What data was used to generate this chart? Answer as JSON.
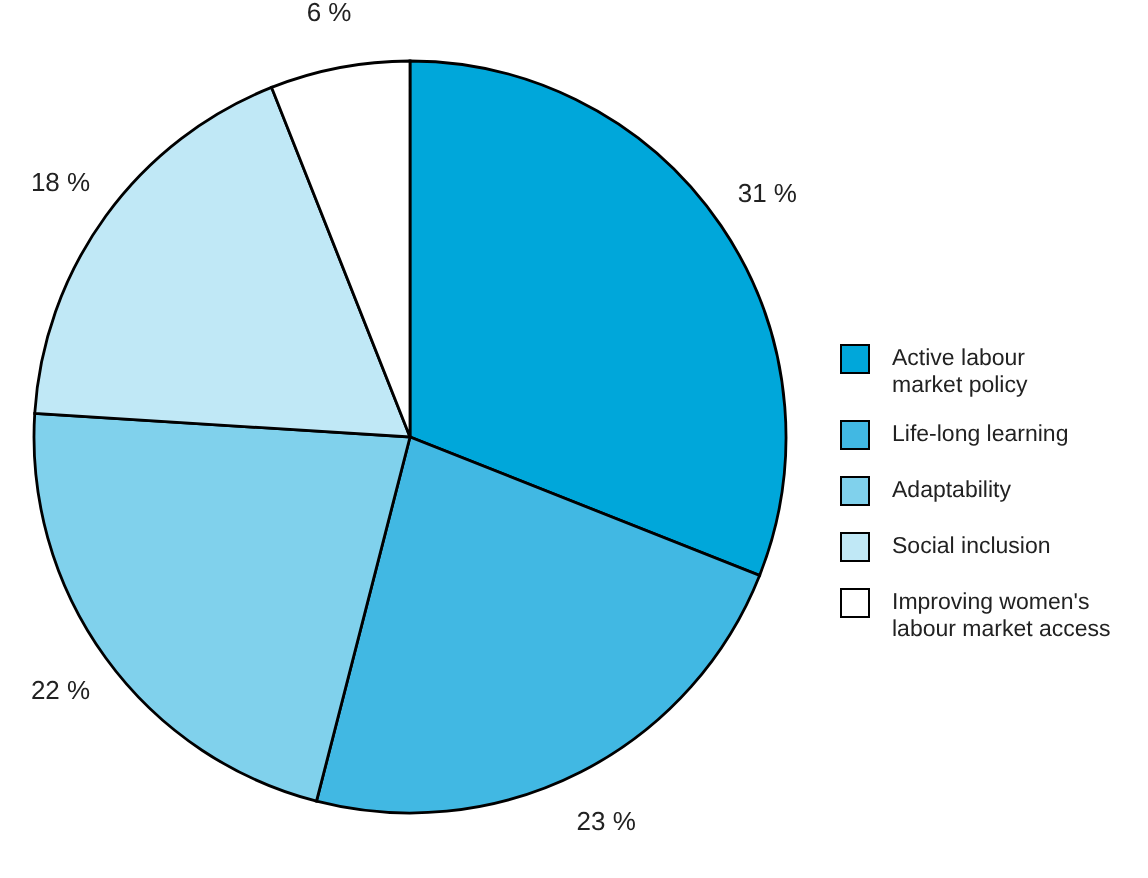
{
  "chart_data": {
    "type": "pie",
    "categories": [
      "Active labour market policy",
      "Life-long learning",
      "Adaptability",
      "Social inclusion",
      "Improving women's labour market access"
    ],
    "values": [
      31,
      23,
      22,
      18,
      6
    ],
    "colors": [
      "#00a7da",
      "#41b8e3",
      "#80d1ec",
      "#c0e8f6",
      "#ffffff"
    ],
    "value_labels": [
      "31 %",
      "23 %",
      "22 %",
      "18 %",
      "6 %"
    ],
    "legend": "right"
  }
}
